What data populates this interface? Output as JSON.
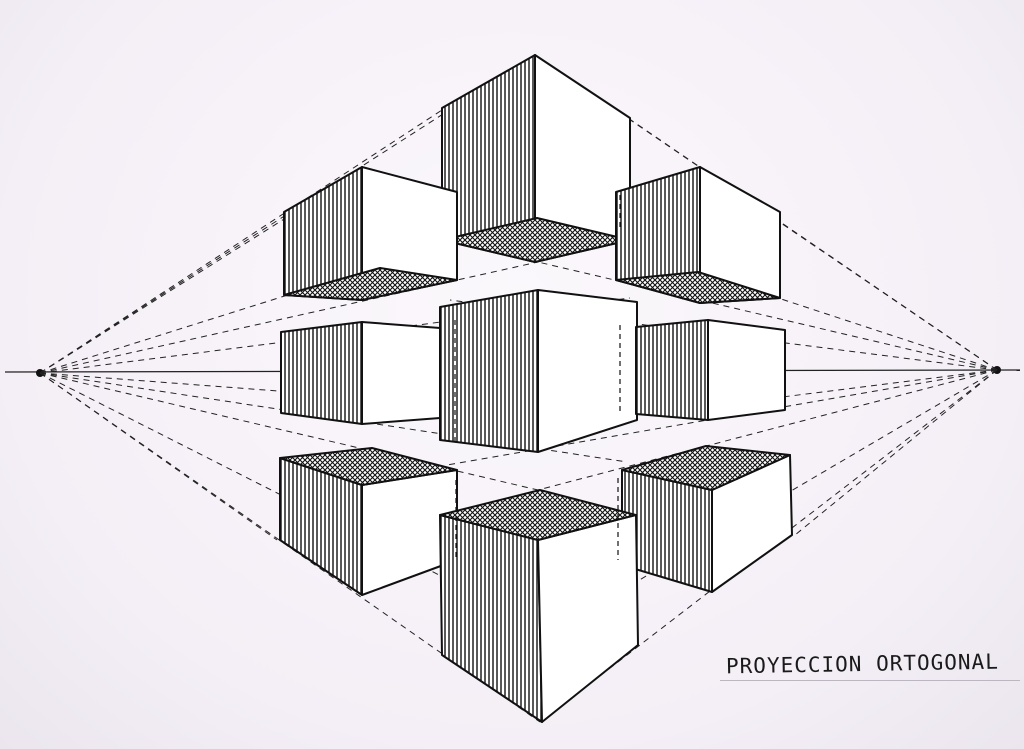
{
  "caption": "PROYECCION ORTOGONAL",
  "colors": {
    "paper": "#f6f2f7",
    "ink": "#111111",
    "guide": "#222222"
  }
}
